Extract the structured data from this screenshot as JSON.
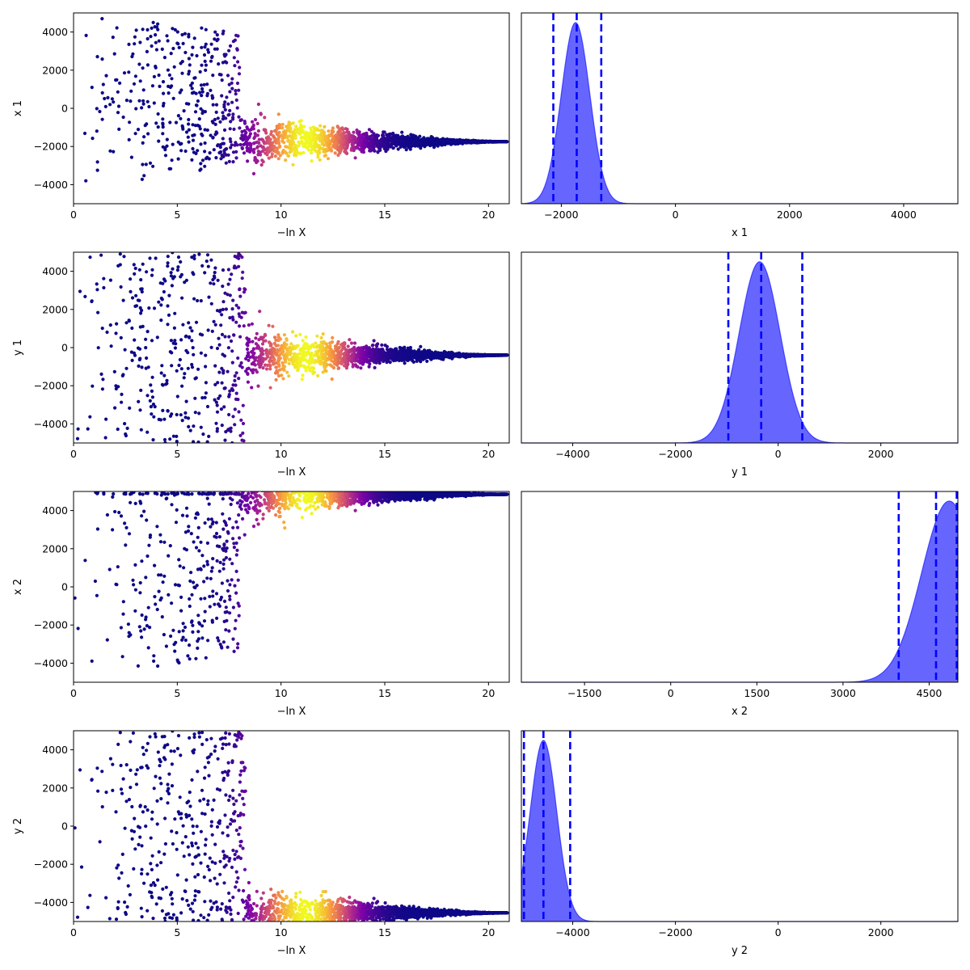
{
  "chart_data": [
    {
      "type": "scatter",
      "xlabel": "−ln X",
      "ylabel": "x 1",
      "xlim": [
        0,
        21
      ],
      "ylim": [
        -5000,
        5000
      ],
      "x_ticks": [
        0,
        5,
        10,
        15,
        20
      ],
      "y_ticks": [
        -4000,
        -2000,
        0,
        2000,
        4000
      ],
      "x_tick_labels": [
        "0",
        "5",
        "10",
        "15",
        "20"
      ],
      "y_tick_labels": [
        "−4000",
        "−2000",
        "0",
        "2000",
        "4000"
      ],
      "colormap": "plasma",
      "point_color_low": "#0d0887",
      "point_color_high": "#f0f921",
      "series": [
        {
          "shape": "fan",
          "cloud_until": 8.0,
          "converge_to": -1750,
          "end": 20.9,
          "bulk": "upper",
          "max_weight_at": 11.2
        }
      ]
    },
    {
      "type": "area",
      "xlabel": "x 1",
      "ylabel": "",
      "xlim": [
        -2700,
        4950
      ],
      "x_ticks": [
        -2000,
        0,
        2000,
        4000
      ],
      "x_tick_labels": [
        "−2000",
        "0",
        "2000",
        "4000"
      ],
      "fill_color": "#0000ff",
      "quantile_line_color": "#0000ff",
      "density": {
        "peak": -1750,
        "width": 250,
        "peak_height": 0.95,
        "truncate_at": null
      },
      "quantiles": [
        -2140,
        -1730,
        -1300
      ]
    },
    {
      "type": "scatter",
      "xlabel": "−ln X",
      "ylabel": "y 1",
      "xlim": [
        0,
        21
      ],
      "ylim": [
        -5000,
        5000
      ],
      "x_ticks": [
        0,
        5,
        10,
        15,
        20
      ],
      "y_ticks": [
        -4000,
        -2000,
        0,
        2000,
        4000
      ],
      "x_tick_labels": [
        "0",
        "5",
        "10",
        "15",
        "20"
      ],
      "y_tick_labels": [
        "−4000",
        "−2000",
        "0",
        "2000",
        "4000"
      ],
      "colormap": "plasma",
      "point_color_low": "#0d0887",
      "point_color_high": "#f0f921",
      "series": [
        {
          "shape": "fan",
          "cloud_until": 8.3,
          "converge_to": -400,
          "end": 20.9,
          "bulk": "split",
          "max_weight_at": 11.2
        }
      ]
    },
    {
      "type": "area",
      "xlabel": "y 1",
      "ylabel": "",
      "xlim": [
        -5000,
        3500
      ],
      "x_ticks": [
        -4000,
        -2000,
        0,
        2000
      ],
      "x_tick_labels": [
        "−4000",
        "−2000",
        "0",
        "2000"
      ],
      "fill_color": "#0000ff",
      "quantile_line_color": "#0000ff",
      "density": {
        "peak": -360,
        "width": 400,
        "peak_height": 0.95,
        "truncate_at": null
      },
      "quantiles": [
        -970,
        -330,
        470
      ]
    },
    {
      "type": "scatter",
      "xlabel": "−ln X",
      "ylabel": "x 2",
      "xlim": [
        0,
        21
      ],
      "ylim": [
        -5000,
        5000
      ],
      "x_ticks": [
        0,
        5,
        10,
        15,
        20
      ],
      "y_ticks": [
        -4000,
        -2000,
        0,
        2000,
        4000
      ],
      "x_tick_labels": [
        "0",
        "5",
        "10",
        "15",
        "20"
      ],
      "y_tick_labels": [
        "−4000",
        "−2000",
        "0",
        "2000",
        "4000"
      ],
      "colormap": "plasma",
      "point_color_low": "#0d0887",
      "point_color_high": "#f0f921",
      "series": [
        {
          "shape": "fan",
          "cloud_until": 8.0,
          "converge_to": 4850,
          "end": 20.9,
          "bulk": "lower",
          "max_weight_at": 11.2
        }
      ]
    },
    {
      "type": "area",
      "xlabel": "x 2",
      "ylabel": "",
      "xlim": [
        -2600,
        5000
      ],
      "x_ticks": [
        -1500,
        0,
        1500,
        3000,
        4500
      ],
      "x_tick_labels": [
        "−1500",
        "0",
        "1500",
        "3000",
        "4500"
      ],
      "fill_color": "#0000ff",
      "quantile_line_color": "#0000ff",
      "density": {
        "peak": 4850,
        "width": 480,
        "peak_height": 0.95,
        "truncate_at": 5000
      },
      "quantiles": [
        3970,
        4620,
        4980
      ]
    },
    {
      "type": "scatter",
      "xlabel": "−ln X",
      "ylabel": "y 2",
      "xlim": [
        0,
        21
      ],
      "ylim": [
        -5000,
        5000
      ],
      "x_ticks": [
        0,
        5,
        10,
        15,
        20
      ],
      "y_ticks": [
        -4000,
        -2000,
        0,
        2000,
        4000
      ],
      "x_tick_labels": [
        "0",
        "5",
        "10",
        "15",
        "20"
      ],
      "y_tick_labels": [
        "−4000",
        "−2000",
        "0",
        "2000",
        "4000"
      ],
      "colormap": "plasma",
      "point_color_low": "#0d0887",
      "point_color_high": "#f0f921",
      "series": [
        {
          "shape": "fan",
          "cloud_until": 8.3,
          "converge_to": -4550,
          "end": 20.9,
          "bulk": "split",
          "max_weight_at": 11.2
        }
      ]
    },
    {
      "type": "area",
      "xlabel": "y 2",
      "ylabel": "",
      "xlim": [
        -5000,
        3500
      ],
      "x_ticks": [
        -4000,
        -2000,
        0,
        2000
      ],
      "x_tick_labels": [
        "−4000",
        "−2000",
        "0",
        "2000"
      ],
      "fill_color": "#0000ff",
      "quantile_line_color": "#0000ff",
      "density": {
        "peak": -4570,
        "width": 260,
        "peak_height": 0.95,
        "truncate_at": -5000
      },
      "quantiles": [
        -4950,
        -4570,
        -4050
      ]
    }
  ]
}
